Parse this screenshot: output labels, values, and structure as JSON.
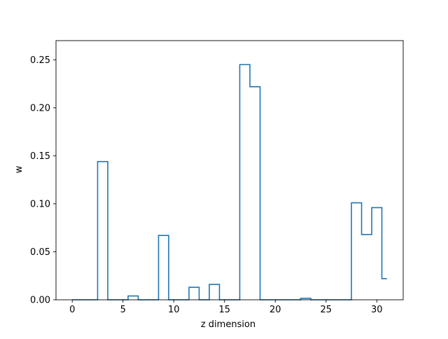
{
  "chart_data": {
    "type": "step",
    "title": "",
    "xlabel": "z dimension",
    "ylabel": "w",
    "xlim": [
      -1.6,
      32.6
    ],
    "ylim": [
      0,
      0.27
    ],
    "xticks": [
      0,
      5,
      10,
      15,
      20,
      25,
      30
    ],
    "yticks": [
      0.0,
      0.05,
      0.1,
      0.15,
      0.2,
      0.25
    ],
    "ytick_labels": [
      "0.00",
      "0.05",
      "0.10",
      "0.15",
      "0.20",
      "0.25"
    ],
    "step_where": "mid",
    "grid": false,
    "legend": "none",
    "line_color": "#1f77b4",
    "x": [
      0,
      1,
      2,
      3,
      4,
      5,
      6,
      7,
      8,
      9,
      10,
      11,
      12,
      13,
      14,
      15,
      16,
      17,
      18,
      19,
      20,
      21,
      22,
      23,
      24,
      25,
      26,
      27,
      28,
      29,
      30,
      31
    ],
    "values": [
      0,
      0,
      0,
      0.144,
      0,
      0,
      0.004,
      0,
      0,
      0.067,
      0,
      0,
      0.013,
      0,
      0.016,
      0,
      0,
      0.245,
      0.222,
      0,
      0,
      0,
      0,
      0.0015,
      0,
      0,
      0,
      0,
      0.101,
      0.068,
      0.096,
      0.022
    ]
  }
}
